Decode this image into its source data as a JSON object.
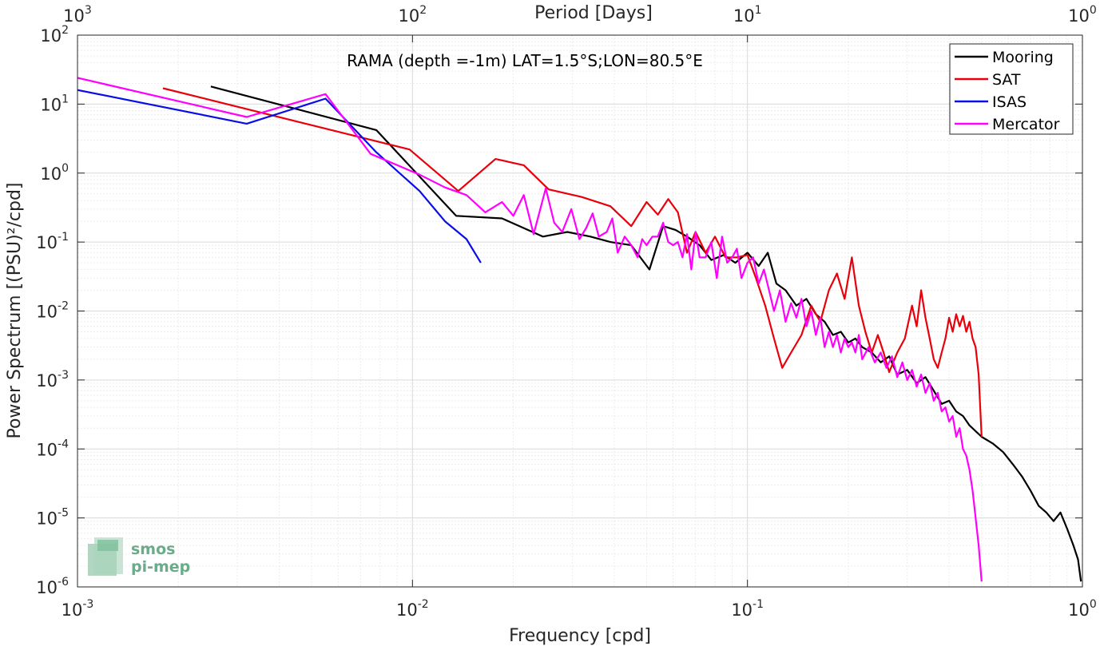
{
  "chart_data": {
    "type": "line",
    "title": "RAMA (depth =-1m) LAT=1.5°S;LON=80.5°E",
    "xlabel": "Frequency [cpd]",
    "ylabel": "Power Spectrum [(PSU)²/cpd]",
    "top_xlabel": "Period [Days]",
    "x_scale": "log",
    "y_scale": "log",
    "xlim": [
      0.001,
      1
    ],
    "ylim": [
      1e-06,
      100
    ],
    "grid": true,
    "legend_position": "top-right",
    "x_ticks": [
      {
        "value": 0.001,
        "base": "10",
        "exp": "-3"
      },
      {
        "value": 0.01,
        "base": "10",
        "exp": "-2"
      },
      {
        "value": 0.1,
        "base": "10",
        "exp": "-1"
      },
      {
        "value": 1,
        "base": "10",
        "exp": "0"
      }
    ],
    "top_x_ticks": [
      {
        "value": 0.001,
        "base": "10",
        "exp": "3"
      },
      {
        "value": 0.01,
        "base": "10",
        "exp": "2"
      },
      {
        "value": 0.1,
        "base": "10",
        "exp": "1"
      },
      {
        "value": 1,
        "base": "10",
        "exp": "0"
      }
    ],
    "y_ticks": [
      {
        "value": 100,
        "base": "10",
        "exp": "2"
      },
      {
        "value": 10,
        "base": "10",
        "exp": "1"
      },
      {
        "value": 1,
        "base": "10",
        "exp": "0"
      },
      {
        "value": 0.1,
        "base": "10",
        "exp": "-1"
      },
      {
        "value": 0.01,
        "base": "10",
        "exp": "-2"
      },
      {
        "value": 0.001,
        "base": "10",
        "exp": "-3"
      },
      {
        "value": 0.0001,
        "base": "10",
        "exp": "-4"
      },
      {
        "value": 1e-05,
        "base": "10",
        "exp": "-5"
      },
      {
        "value": 1e-06,
        "base": "10",
        "exp": "-6"
      }
    ],
    "series": [
      {
        "name": "Mooring",
        "color": "#000000",
        "points": [
          [
            0.0025,
            18
          ],
          [
            0.0078,
            4.2
          ],
          [
            0.0135,
            0.24
          ],
          [
            0.0185,
            0.22
          ],
          [
            0.0245,
            0.12
          ],
          [
            0.029,
            0.14
          ],
          [
            0.034,
            0.12
          ],
          [
            0.039,
            0.1
          ],
          [
            0.045,
            0.09
          ],
          [
            0.051,
            0.04
          ],
          [
            0.056,
            0.17
          ],
          [
            0.061,
            0.15
          ],
          [
            0.066,
            0.12
          ],
          [
            0.072,
            0.09
          ],
          [
            0.078,
            0.055
          ],
          [
            0.085,
            0.065
          ],
          [
            0.092,
            0.05
          ],
          [
            0.1,
            0.07
          ],
          [
            0.108,
            0.045
          ],
          [
            0.115,
            0.07
          ],
          [
            0.122,
            0.025
          ],
          [
            0.13,
            0.02
          ],
          [
            0.14,
            0.012
          ],
          [
            0.15,
            0.015
          ],
          [
            0.16,
            0.009
          ],
          [
            0.17,
            0.007
          ],
          [
            0.18,
            0.0045
          ],
          [
            0.19,
            0.005
          ],
          [
            0.2,
            0.0035
          ],
          [
            0.21,
            0.004
          ],
          [
            0.22,
            0.003
          ],
          [
            0.235,
            0.0025
          ],
          [
            0.25,
            0.0018
          ],
          [
            0.265,
            0.0022
          ],
          [
            0.28,
            0.0012
          ],
          [
            0.3,
            0.0014
          ],
          [
            0.32,
            0.0009
          ],
          [
            0.34,
            0.0011
          ],
          [
            0.36,
            0.0007
          ],
          [
            0.38,
            0.00045
          ],
          [
            0.4,
            0.0005
          ],
          [
            0.42,
            0.00035
          ],
          [
            0.44,
            0.0003
          ],
          [
            0.46,
            0.00022
          ],
          [
            0.5,
            0.00015
          ],
          [
            0.54,
            0.00012
          ],
          [
            0.58,
            9e-05
          ],
          [
            0.62,
            6e-05
          ],
          [
            0.66,
            4e-05
          ],
          [
            0.7,
            2.5e-05
          ],
          [
            0.74,
            1.5e-05
          ],
          [
            0.78,
            1.2e-05
          ],
          [
            0.82,
            9e-06
          ],
          [
            0.86,
            1.2e-05
          ],
          [
            0.9,
            7e-06
          ],
          [
            0.94,
            4e-06
          ],
          [
            0.97,
            2.5e-06
          ],
          [
            0.99,
            1.2e-06
          ]
        ]
      },
      {
        "name": "SAT",
        "color": "#e8000b",
        "points": [
          [
            0.0018,
            17
          ],
          [
            0.0098,
            2.2
          ],
          [
            0.0137,
            0.55
          ],
          [
            0.0177,
            1.6
          ],
          [
            0.0215,
            1.3
          ],
          [
            0.0255,
            0.58
          ],
          [
            0.032,
            0.45
          ],
          [
            0.039,
            0.33
          ],
          [
            0.045,
            0.17
          ],
          [
            0.05,
            0.38
          ],
          [
            0.054,
            0.25
          ],
          [
            0.058,
            0.42
          ],
          [
            0.062,
            0.27
          ],
          [
            0.066,
            0.07
          ],
          [
            0.07,
            0.14
          ],
          [
            0.075,
            0.07
          ],
          [
            0.08,
            0.12
          ],
          [
            0.086,
            0.06
          ],
          [
            0.093,
            0.06
          ],
          [
            0.1,
            0.065
          ],
          [
            0.106,
            0.03
          ],
          [
            0.113,
            0.012
          ],
          [
            0.12,
            0.004
          ],
          [
            0.127,
            0.0015
          ],
          [
            0.135,
            0.0025
          ],
          [
            0.145,
            0.0045
          ],
          [
            0.155,
            0.012
          ],
          [
            0.165,
            0.007
          ],
          [
            0.175,
            0.02
          ],
          [
            0.185,
            0.035
          ],
          [
            0.195,
            0.015
          ],
          [
            0.205,
            0.06
          ],
          [
            0.215,
            0.012
          ],
          [
            0.225,
            0.005
          ],
          [
            0.235,
            0.0025
          ],
          [
            0.245,
            0.0045
          ],
          [
            0.255,
            0.0025
          ],
          [
            0.265,
            0.0013
          ],
          [
            0.28,
            0.0025
          ],
          [
            0.295,
            0.004
          ],
          [
            0.31,
            0.012
          ],
          [
            0.32,
            0.006
          ],
          [
            0.33,
            0.02
          ],
          [
            0.34,
            0.008
          ],
          [
            0.35,
            0.004
          ],
          [
            0.36,
            0.002
          ],
          [
            0.37,
            0.0015
          ],
          [
            0.38,
            0.0025
          ],
          [
            0.39,
            0.004
          ],
          [
            0.4,
            0.008
          ],
          [
            0.41,
            0.005
          ],
          [
            0.42,
            0.009
          ],
          [
            0.43,
            0.006
          ],
          [
            0.44,
            0.0085
          ],
          [
            0.45,
            0.005
          ],
          [
            0.46,
            0.007
          ],
          [
            0.47,
            0.004
          ],
          [
            0.48,
            0.003
          ],
          [
            0.49,
            0.0012
          ],
          [
            0.5,
            0.00015
          ]
        ]
      },
      {
        "name": "ISAS",
        "color": "#0a0ee6",
        "points": [
          [
            0.001,
            16
          ],
          [
            0.0032,
            5.2
          ],
          [
            0.0055,
            12
          ],
          [
            0.0078,
            2.0
          ],
          [
            0.0105,
            0.55
          ],
          [
            0.0125,
            0.2
          ],
          [
            0.0145,
            0.11
          ],
          [
            0.016,
            0.05
          ]
        ]
      },
      {
        "name": "Mercator",
        "color": "#ff00ff",
        "points": [
          [
            0.001,
            24
          ],
          [
            0.0032,
            6.5
          ],
          [
            0.0055,
            14
          ],
          [
            0.0075,
            1.9
          ],
          [
            0.0105,
            0.95
          ],
          [
            0.0125,
            0.62
          ],
          [
            0.0145,
            0.48
          ],
          [
            0.0165,
            0.27
          ],
          [
            0.0185,
            0.38
          ],
          [
            0.02,
            0.24
          ],
          [
            0.0215,
            0.48
          ],
          [
            0.023,
            0.13
          ],
          [
            0.025,
            0.6
          ],
          [
            0.0265,
            0.19
          ],
          [
            0.028,
            0.14
          ],
          [
            0.0298,
            0.3
          ],
          [
            0.0315,
            0.11
          ],
          [
            0.033,
            0.16
          ],
          [
            0.0345,
            0.26
          ],
          [
            0.036,
            0.12
          ],
          [
            0.038,
            0.14
          ],
          [
            0.0395,
            0.22
          ],
          [
            0.041,
            0.07
          ],
          [
            0.043,
            0.12
          ],
          [
            0.045,
            0.09
          ],
          [
            0.047,
            0.06
          ],
          [
            0.0485,
            0.11
          ],
          [
            0.05,
            0.09
          ],
          [
            0.052,
            0.12
          ],
          [
            0.054,
            0.12
          ],
          [
            0.056,
            0.19
          ],
          [
            0.058,
            0.1
          ],
          [
            0.06,
            0.09
          ],
          [
            0.062,
            0.1
          ],
          [
            0.064,
            0.06
          ],
          [
            0.066,
            0.13
          ],
          [
            0.068,
            0.04
          ],
          [
            0.07,
            0.14
          ],
          [
            0.072,
            0.06
          ],
          [
            0.075,
            0.06
          ],
          [
            0.078,
            0.1
          ],
          [
            0.081,
            0.03
          ],
          [
            0.084,
            0.12
          ],
          [
            0.087,
            0.05
          ],
          [
            0.09,
            0.06
          ],
          [
            0.093,
            0.08
          ],
          [
            0.096,
            0.03
          ],
          [
            0.1,
            0.05
          ],
          [
            0.104,
            0.06
          ],
          [
            0.108,
            0.025
          ],
          [
            0.112,
            0.04
          ],
          [
            0.116,
            0.02
          ],
          [
            0.12,
            0.01
          ],
          [
            0.125,
            0.02
          ],
          [
            0.13,
            0.007
          ],
          [
            0.135,
            0.013
          ],
          [
            0.14,
            0.008
          ],
          [
            0.145,
            0.015
          ],
          [
            0.15,
            0.006
          ],
          [
            0.155,
            0.01
          ],
          [
            0.16,
            0.0045
          ],
          [
            0.165,
            0.008
          ],
          [
            0.17,
            0.003
          ],
          [
            0.175,
            0.005
          ],
          [
            0.18,
            0.003
          ],
          [
            0.185,
            0.0045
          ],
          [
            0.19,
            0.0025
          ],
          [
            0.195,
            0.004
          ],
          [
            0.2,
            0.003
          ],
          [
            0.205,
            0.0035
          ],
          [
            0.21,
            0.0025
          ],
          [
            0.215,
            0.0045
          ],
          [
            0.22,
            0.002
          ],
          [
            0.23,
            0.003
          ],
          [
            0.24,
            0.0018
          ],
          [
            0.25,
            0.0025
          ],
          [
            0.26,
            0.0015
          ],
          [
            0.27,
            0.0022
          ],
          [
            0.28,
            0.0011
          ],
          [
            0.29,
            0.0018
          ],
          [
            0.3,
            0.001
          ],
          [
            0.31,
            0.0014
          ],
          [
            0.32,
            0.0008
          ],
          [
            0.33,
            0.0012
          ],
          [
            0.34,
            0.00065
          ],
          [
            0.35,
            0.0009
          ],
          [
            0.36,
            0.0005
          ],
          [
            0.37,
            0.00065
          ],
          [
            0.38,
            0.00035
          ],
          [
            0.39,
            0.0004
          ],
          [
            0.4,
            0.00025
          ],
          [
            0.41,
            0.0003
          ],
          [
            0.42,
            0.00015
          ],
          [
            0.43,
            0.0002
          ],
          [
            0.44,
            0.0001
          ],
          [
            0.45,
            8e-05
          ],
          [
            0.46,
            5e-05
          ],
          [
            0.47,
            2.5e-05
          ],
          [
            0.48,
            1e-05
          ],
          [
            0.49,
            4e-06
          ],
          [
            0.5,
            1.2e-06
          ]
        ]
      }
    ]
  },
  "logo": {
    "line1": "smos",
    "line2": "pi-mep"
  }
}
